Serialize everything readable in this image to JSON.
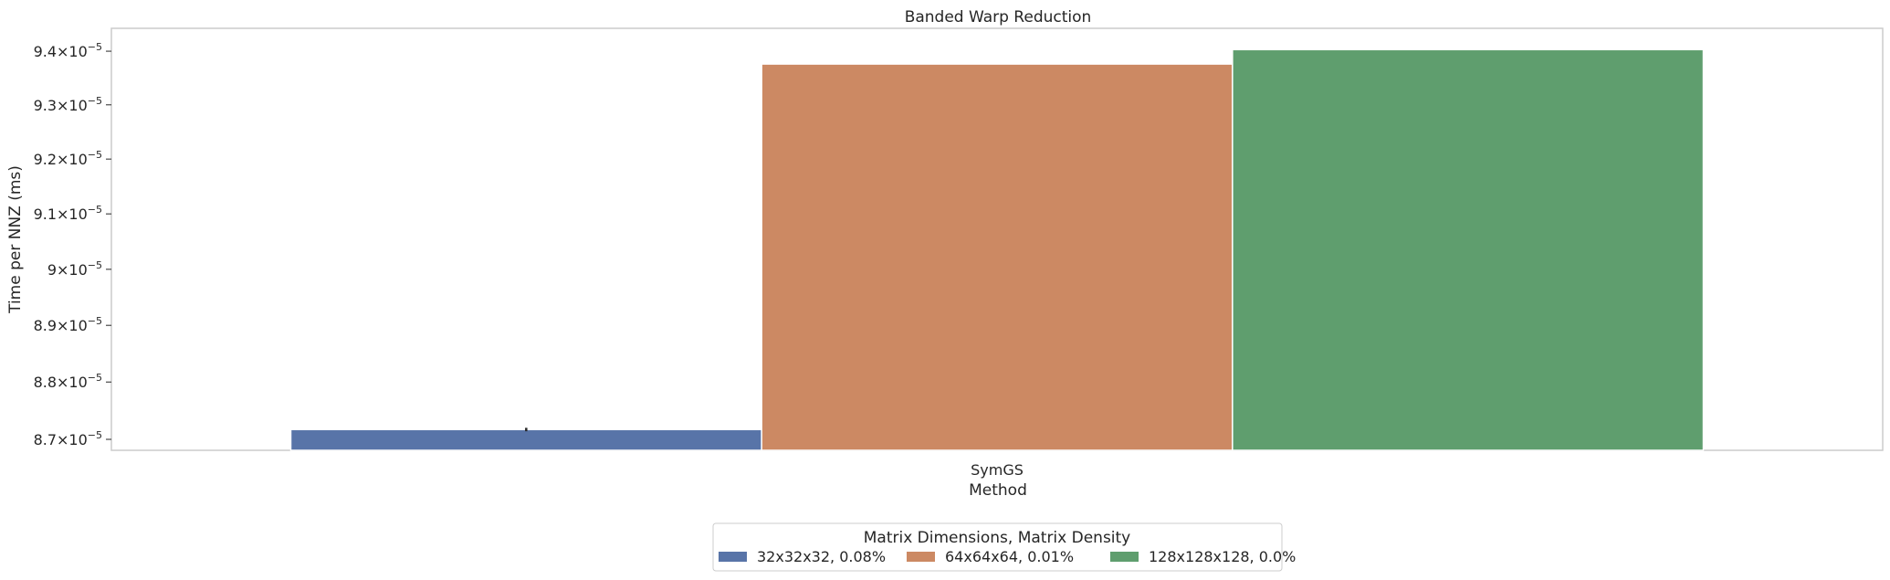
{
  "chart_data": {
    "type": "bar",
    "title": "Banded Warp Reduction",
    "xlabel": "Method",
    "ylabel": "Time per NNZ (ms)",
    "categories": [
      "SymGS"
    ],
    "series": [
      {
        "name": "32x32x32, 0.08%",
        "color": "#5874a8",
        "values": [
          8.717e-05
        ],
        "error": [
          3e-08
        ]
      },
      {
        "name": "64x64x64, 0.01%",
        "color": "#cc8963",
        "values": [
          9.376e-05
        ]
      },
      {
        "name": "128x128x128, 0.0%",
        "color": "#5f9e6e",
        "values": [
          9.403e-05
        ]
      }
    ],
    "ylim": [
      8.681e-05,
      9.443e-05
    ],
    "yscale": "log",
    "yticks": [
      8.7e-05,
      8.8e-05,
      8.9e-05,
      9e-05,
      9.1e-05,
      9.2e-05,
      9.3e-05,
      9.4e-05
    ],
    "ytick_labels": [
      {
        "mant": "8.7",
        "exp": "−5"
      },
      {
        "mant": "8.8",
        "exp": "−5"
      },
      {
        "mant": "8.9",
        "exp": "−5"
      },
      {
        "mant": "9",
        "exp": "−5"
      },
      {
        "mant": "9.1",
        "exp": "−5"
      },
      {
        "mant": "9.2",
        "exp": "−5"
      },
      {
        "mant": "9.3",
        "exp": "−5"
      },
      {
        "mant": "9.4",
        "exp": "−5"
      }
    ],
    "grid": false,
    "legend": {
      "title": "Matrix Dimensions, Matrix Density",
      "placement": "bottom-center"
    }
  }
}
